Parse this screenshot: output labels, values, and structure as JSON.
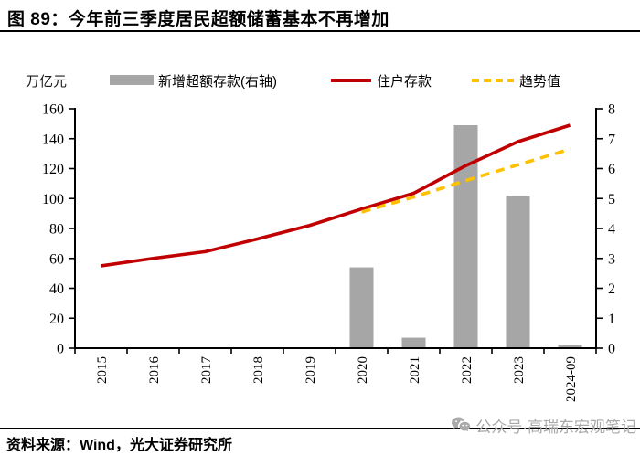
{
  "title": "图 89：今年前三季度居民超额储蓄基本不再增加",
  "axis_unit_label": "万亿元",
  "legend": [
    {
      "label": "新增超额存款(右轴)",
      "type": "bar",
      "color": "#A6A6A6"
    },
    {
      "label": "住户存款",
      "type": "line",
      "color": "#C00000"
    },
    {
      "label": "趋势值",
      "type": "dashed-line",
      "color": "#FFC000"
    }
  ],
  "source": "资料来源：Wind，光大证券研究所",
  "watermark": "公众号·高瑞东宏观笔记",
  "colors": {
    "bar": "#A6A6A6",
    "deposit_line": "#C00000",
    "trend_line": "#FFC000",
    "axis": "#000000",
    "watermark": "#a9a9a9"
  },
  "chart_data": {
    "type": "bar",
    "subtype": "combo-bar-line",
    "categories": [
      "2015",
      "2016",
      "2017",
      "2018",
      "2019",
      "2020",
      "2021",
      "2022",
      "2023",
      "2024-09"
    ],
    "series": [
      {
        "name": "新增超额存款(右轴)",
        "type": "bar",
        "axis": "right",
        "color": "#A6A6A6",
        "values": [
          null,
          null,
          null,
          null,
          null,
          2.7,
          0.35,
          7.45,
          5.1,
          0.12
        ]
      },
      {
        "name": "住户存款",
        "type": "line",
        "axis": "left",
        "color": "#C00000",
        "dashed": false,
        "values": [
          55,
          60,
          64.5,
          73,
          82,
          93,
          103.5,
          122,
          138,
          149
        ]
      },
      {
        "name": "趋势值",
        "type": "line",
        "axis": "left",
        "color": "#FFC000",
        "dashed": true,
        "values": [
          null,
          null,
          null,
          null,
          null,
          91,
          101,
          112,
          122.5,
          133
        ]
      }
    ],
    "left_axis": {
      "label": "万亿元",
      "min": 0,
      "max": 160,
      "step": 20,
      "ticks": [
        0,
        20,
        40,
        60,
        80,
        100,
        120,
        140,
        160
      ]
    },
    "right_axis": {
      "min": 0,
      "max": 8,
      "step": 1,
      "ticks": [
        0,
        1,
        2,
        3,
        4,
        5,
        6,
        7,
        8
      ]
    },
    "grid": false,
    "legend_position": "top",
    "x_tick_label_rotation": -90
  }
}
